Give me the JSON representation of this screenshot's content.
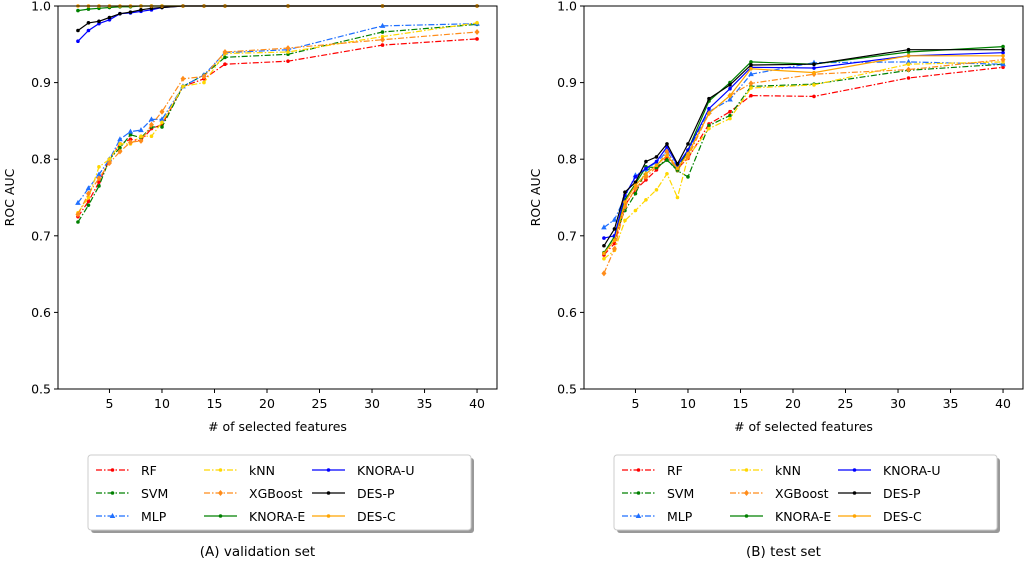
{
  "series_styles": [
    {
      "name": "RF",
      "color": "#ff0000",
      "dash": true,
      "marker": "circle"
    },
    {
      "name": "SVM",
      "color": "#008000",
      "dash": true,
      "marker": "circle"
    },
    {
      "name": "MLP",
      "color": "#1f6fff",
      "dash": true,
      "marker": "triangle"
    },
    {
      "name": "kNN",
      "color": "#ffd700",
      "dash": true,
      "marker": "circle"
    },
    {
      "name": "XGBoost",
      "color": "#ff8c1a",
      "dash": true,
      "marker": "diamond"
    },
    {
      "name": "KNORA-E",
      "color": "#008000",
      "dash": false,
      "marker": "circle"
    },
    {
      "name": "KNORA-U",
      "color": "#0000ff",
      "dash": false,
      "marker": "circle"
    },
    {
      "name": "DES-P",
      "color": "#000000",
      "dash": false,
      "marker": "circle"
    },
    {
      "name": "DES-C",
      "color": "#ffa500",
      "dash": false,
      "marker": "circle"
    }
  ],
  "chart_data": [
    {
      "type": "line",
      "caption": "(A) validation set",
      "xlabel": "# of selected features",
      "ylabel": "ROC AUC",
      "xlim": [
        0.1,
        41.9
      ],
      "ylim": [
        0.5,
        1.0
      ],
      "xticks": [
        5,
        10,
        15,
        20,
        25,
        30,
        35,
        40
      ],
      "yticks": [
        "0.5",
        "0.6",
        "0.7",
        "0.8",
        "0.9",
        "1.0"
      ],
      "legend": "below",
      "x": [
        2,
        3,
        4,
        5,
        6,
        7,
        8,
        9,
        10,
        12,
        14,
        16,
        22,
        31,
        40
      ],
      "series": [
        {
          "name": "RF",
          "values": [
            0.725,
            0.745,
            0.77,
            0.8,
            0.82,
            0.826,
            0.824,
            0.84,
            0.845,
            0.895,
            0.905,
            0.924,
            0.928,
            0.949,
            0.957
          ]
        },
        {
          "name": "SVM",
          "values": [
            0.718,
            0.74,
            0.765,
            0.8,
            0.815,
            0.832,
            0.828,
            0.842,
            0.842,
            0.895,
            0.91,
            0.933,
            0.937,
            0.966,
            0.976
          ]
        },
        {
          "name": "MLP",
          "values": [
            0.743,
            0.762,
            0.78,
            0.8,
            0.826,
            0.836,
            0.838,
            0.852,
            0.852,
            0.895,
            0.91,
            0.939,
            0.943,
            0.974,
            0.977
          ]
        },
        {
          "name": "kNN",
          "values": [
            0.73,
            0.75,
            0.79,
            0.8,
            0.82,
            0.82,
            0.83,
            0.83,
            0.848,
            0.895,
            0.9,
            0.938,
            0.94,
            0.96,
            0.978
          ]
        },
        {
          "name": "XGBoost",
          "values": [
            0.728,
            0.755,
            0.775,
            0.795,
            0.81,
            0.822,
            0.824,
            0.845,
            0.862,
            0.905,
            0.908,
            0.94,
            0.945,
            0.956,
            0.966
          ]
        },
        {
          "name": "KNORA-E",
          "values": [
            0.994,
            0.996,
            0.997,
            0.998,
            0.999,
            0.999,
            1.0,
            1.0,
            1.0,
            1.0,
            1.0,
            1.0,
            1.0,
            1.0,
            1.0
          ]
        },
        {
          "name": "KNORA-U",
          "values": [
            0.954,
            0.968,
            0.977,
            0.982,
            0.99,
            0.991,
            0.993,
            0.995,
            0.998,
            1.0,
            1.0,
            1.0,
            1.0,
            1.0,
            1.0
          ]
        },
        {
          "name": "DES-P",
          "values": [
            0.968,
            0.978,
            0.98,
            0.985,
            0.99,
            0.992,
            0.995,
            0.997,
            0.998,
            1.0,
            1.0,
            1.0,
            1.0,
            1.0,
            1.0
          ]
        },
        {
          "name": "DES-C",
          "values": [
            1.0,
            1.0,
            1.0,
            1.0,
            1.0,
            1.0,
            1.0,
            1.0,
            1.0,
            1.0,
            1.0,
            1.0,
            1.0,
            1.0,
            1.0
          ]
        }
      ]
    },
    {
      "type": "line",
      "caption": "(B) test set",
      "xlabel": "# of selected features",
      "ylabel": "ROC AUC",
      "xlim": [
        0.1,
        41.9
      ],
      "ylim": [
        0.5,
        1.0
      ],
      "xticks": [
        5,
        10,
        15,
        20,
        25,
        30,
        35,
        40
      ],
      "yticks": [
        "0.5",
        "0.6",
        "0.7",
        "0.8",
        "0.9",
        "1.0"
      ],
      "legend": "below",
      "x": [
        2,
        3,
        4,
        5,
        6,
        7,
        8,
        9,
        10,
        12,
        14,
        16,
        22,
        31,
        40
      ],
      "series": [
        {
          "name": "RF",
          "values": [
            0.675,
            0.69,
            0.74,
            0.76,
            0.773,
            0.786,
            0.803,
            0.788,
            0.801,
            0.846,
            0.862,
            0.883,
            0.882,
            0.906,
            0.92
          ]
        },
        {
          "name": "SVM",
          "values": [
            0.677,
            0.699,
            0.733,
            0.755,
            0.786,
            0.79,
            0.799,
            0.785,
            0.777,
            0.844,
            0.857,
            0.895,
            0.898,
            0.916,
            0.924
          ]
        },
        {
          "name": "MLP",
          "values": [
            0.711,
            0.721,
            0.751,
            0.779,
            0.787,
            0.796,
            0.81,
            0.79,
            0.81,
            0.862,
            0.878,
            0.911,
            0.926,
            0.927,
            0.924
          ]
        },
        {
          "name": "kNN",
          "values": [
            0.67,
            0.681,
            0.72,
            0.733,
            0.747,
            0.76,
            0.781,
            0.75,
            0.803,
            0.84,
            0.853,
            0.893,
            0.897,
            0.924,
            0.927
          ]
        },
        {
          "name": "XGBoost",
          "values": [
            0.651,
            0.683,
            0.738,
            0.762,
            0.777,
            0.79,
            0.81,
            0.786,
            0.803,
            0.86,
            0.883,
            0.899,
            0.911,
            0.917,
            0.93
          ]
        },
        {
          "name": "KNORA-E",
          "values": [
            0.678,
            0.699,
            0.747,
            0.768,
            0.79,
            0.789,
            0.799,
            0.786,
            0.812,
            0.876,
            0.9,
            0.927,
            0.924,
            0.94,
            0.947
          ]
        },
        {
          "name": "KNORA-U",
          "values": [
            0.697,
            0.7,
            0.753,
            0.777,
            0.788,
            0.797,
            0.816,
            0.792,
            0.812,
            0.866,
            0.892,
            0.92,
            0.919,
            0.935,
            0.939
          ]
        },
        {
          "name": "DES-P",
          "values": [
            0.687,
            0.709,
            0.757,
            0.77,
            0.797,
            0.803,
            0.82,
            0.794,
            0.82,
            0.879,
            0.897,
            0.923,
            0.924,
            0.943,
            0.943
          ]
        },
        {
          "name": "DES-C",
          "values": [
            0.677,
            0.694,
            0.744,
            0.766,
            0.781,
            0.792,
            0.805,
            0.788,
            0.807,
            0.86,
            0.883,
            0.918,
            0.913,
            0.935,
            0.935
          ]
        }
      ]
    }
  ]
}
